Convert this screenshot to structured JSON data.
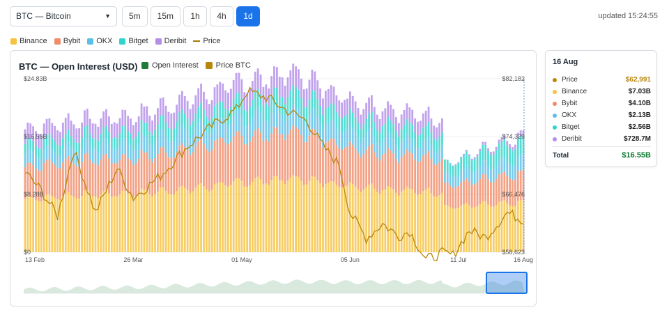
{
  "controls": {
    "asset": "BTC — Bitcoin",
    "timeframes": [
      "5m",
      "15m",
      "1h",
      "4h",
      "1d"
    ],
    "active_timeframe": "1d",
    "updated_label": "updated",
    "updated_time": "15:24:55"
  },
  "legend": [
    {
      "name": "Binance",
      "color": "#f5c242",
      "kind": "box"
    },
    {
      "name": "Bybit",
      "color": "#f08c6a",
      "kind": "box"
    },
    {
      "name": "OKX",
      "color": "#5bc0e8",
      "kind": "box"
    },
    {
      "name": "Bitget",
      "color": "#2fd4cc",
      "kind": "box"
    },
    {
      "name": "Deribit",
      "color": "#b38de8",
      "kind": "box"
    },
    {
      "name": "Price",
      "color": "#a87a00",
      "kind": "line"
    }
  ],
  "chart": {
    "title": "BTC — Open Interest (USD)",
    "legend": [
      {
        "name": "Open Interest",
        "color": "#1f7a3a"
      },
      {
        "name": "Price BTC",
        "color": "#b8860b"
      }
    ],
    "y_left_labels": [
      "$24.83B",
      "$16.55B",
      "$8.28B",
      "$0"
    ],
    "y_right_labels": [
      "$82,182",
      "$74,329",
      "$66,476",
      "$58,623"
    ],
    "x_labels": [
      "13 Feb",
      "26 Mar",
      "01 May",
      "05 Jun",
      "11 Jul",
      "16 Aug"
    ]
  },
  "chart_data": {
    "type": "bar",
    "stacked": true,
    "x_range": [
      "13 Feb",
      "16 Aug"
    ],
    "y_left_range": [
      0,
      24.83
    ],
    "y_right_range": [
      58623,
      82182
    ],
    "n_bars": 185,
    "series": [
      {
        "name": "Binance",
        "unit": "$B",
        "color": "#f5c242",
        "anchors": [
          [
            0,
            7.6
          ],
          [
            20,
            8.2
          ],
          [
            40,
            8.4
          ],
          [
            60,
            9.0
          ],
          [
            80,
            10.0
          ],
          [
            100,
            10.5
          ],
          [
            120,
            9.5
          ],
          [
            140,
            8.8
          ],
          [
            154,
            8.5
          ],
          [
            155,
            6.4
          ],
          [
            170,
            6.8
          ],
          [
            184,
            7.03
          ]
        ]
      },
      {
        "name": "Bybit",
        "unit": "$B",
        "color": "#f08c6a",
        "anchors": [
          [
            0,
            4.6
          ],
          [
            20,
            4.9
          ],
          [
            40,
            5.0
          ],
          [
            60,
            5.8
          ],
          [
            80,
            6.4
          ],
          [
            100,
            6.8
          ],
          [
            120,
            5.5
          ],
          [
            140,
            5.0
          ],
          [
            154,
            4.9
          ],
          [
            155,
            3.0
          ],
          [
            170,
            3.6
          ],
          [
            184,
            4.1
          ]
        ]
      },
      {
        "name": "OKX",
        "unit": "$B",
        "color": "#5bc0e8",
        "anchors": [
          [
            0,
            1.8
          ],
          [
            20,
            2.0
          ],
          [
            40,
            2.2
          ],
          [
            60,
            2.6
          ],
          [
            80,
            2.8
          ],
          [
            100,
            2.9
          ],
          [
            120,
            2.4
          ],
          [
            140,
            2.1
          ],
          [
            154,
            2.0
          ],
          [
            155,
            1.5
          ],
          [
            170,
            1.9
          ],
          [
            184,
            2.13
          ]
        ]
      },
      {
        "name": "Bitget",
        "unit": "$B",
        "color": "#2fd4cc",
        "anchors": [
          [
            0,
            1.5
          ],
          [
            20,
            1.6
          ],
          [
            40,
            1.7
          ],
          [
            60,
            2.0
          ],
          [
            80,
            2.4
          ],
          [
            100,
            2.6
          ],
          [
            120,
            2.1
          ],
          [
            140,
            2.0
          ],
          [
            154,
            1.8
          ],
          [
            155,
            1.6
          ],
          [
            170,
            2.1
          ],
          [
            184,
            2.56
          ]
        ]
      },
      {
        "name": "Deribit",
        "unit": "$B",
        "color": "#b38de8",
        "anchors": [
          [
            0,
            2.1
          ],
          [
            20,
            2.2
          ],
          [
            40,
            2.2
          ],
          [
            60,
            2.5
          ],
          [
            80,
            2.7
          ],
          [
            100,
            2.9
          ],
          [
            120,
            2.3
          ],
          [
            140,
            2.1
          ],
          [
            154,
            2.0
          ],
          [
            155,
            0.0
          ],
          [
            184,
            0.73
          ]
        ]
      },
      {
        "name": "Price",
        "unit": "USD",
        "color": "#b8860b",
        "anchors": [
          [
            0,
            69500
          ],
          [
            6,
            67000
          ],
          [
            12,
            63500
          ],
          [
            18,
            72500
          ],
          [
            26,
            64000
          ],
          [
            34,
            70000
          ],
          [
            40,
            66000
          ],
          [
            50,
            69000
          ],
          [
            60,
            73000
          ],
          [
            70,
            76000
          ],
          [
            78,
            78000
          ],
          [
            82,
            80500
          ],
          [
            90,
            79500
          ],
          [
            96,
            78000
          ],
          [
            104,
            76500
          ],
          [
            110,
            73000
          ],
          [
            116,
            70500
          ],
          [
            120,
            64000
          ],
          [
            126,
            60500
          ],
          [
            132,
            62500
          ],
          [
            138,
            60800
          ],
          [
            142,
            61500
          ],
          [
            148,
            57600
          ],
          [
            154,
            58500
          ],
          [
            158,
            58200
          ],
          [
            164,
            61600
          ],
          [
            170,
            60600
          ],
          [
            178,
            64000
          ],
          [
            184,
            62991
          ]
        ]
      }
    ]
  },
  "summary": {
    "date": "16 Aug",
    "rows": [
      {
        "label": "Price",
        "value": "$62,991",
        "color": "#b8860b"
      },
      {
        "label": "Binance",
        "value": "$7.03B",
        "color": "#f5c242"
      },
      {
        "label": "Bybit",
        "value": "$4.10B",
        "color": "#f08c6a"
      },
      {
        "label": "OKX",
        "value": "$2.13B",
        "color": "#5bc0e8"
      },
      {
        "label": "Bitget",
        "value": "$2.56B",
        "color": "#2fd4cc"
      },
      {
        "label": "Deribit",
        "value": "$728.7M",
        "color": "#b38de8"
      }
    ],
    "total_label": "Total",
    "total_value": "$16.55B"
  }
}
